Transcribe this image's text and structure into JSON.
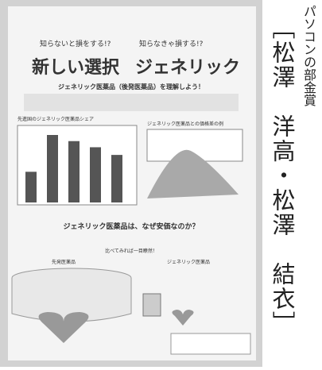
{
  "poster": {
    "header_left_small": "知らないと損をする!?",
    "header_left_big": "新しい選択",
    "header_right_small": "知らなきゃ損する!?",
    "header_right_big": "ジェネリック",
    "section1_title": "ジェネリック医薬品（後発医薬品）を理解しよう！",
    "chart_title": "先進国のジェネリック医薬品シェア",
    "table_title": "ジェネリック医薬品との価格差の例",
    "bar_values": [
      40,
      88,
      80,
      72,
      62
    ],
    "section2_title": "ジェネリック医薬品は、なぜ安価なのか？",
    "section2_sub": "比べてみれば一目瞭然！",
    "left_label": "先発医薬品",
    "right_label": "ジェネリック医薬品"
  },
  "award": "パソコンの部金賞",
  "authors": "［松澤　洋高・松澤　結衣］"
}
